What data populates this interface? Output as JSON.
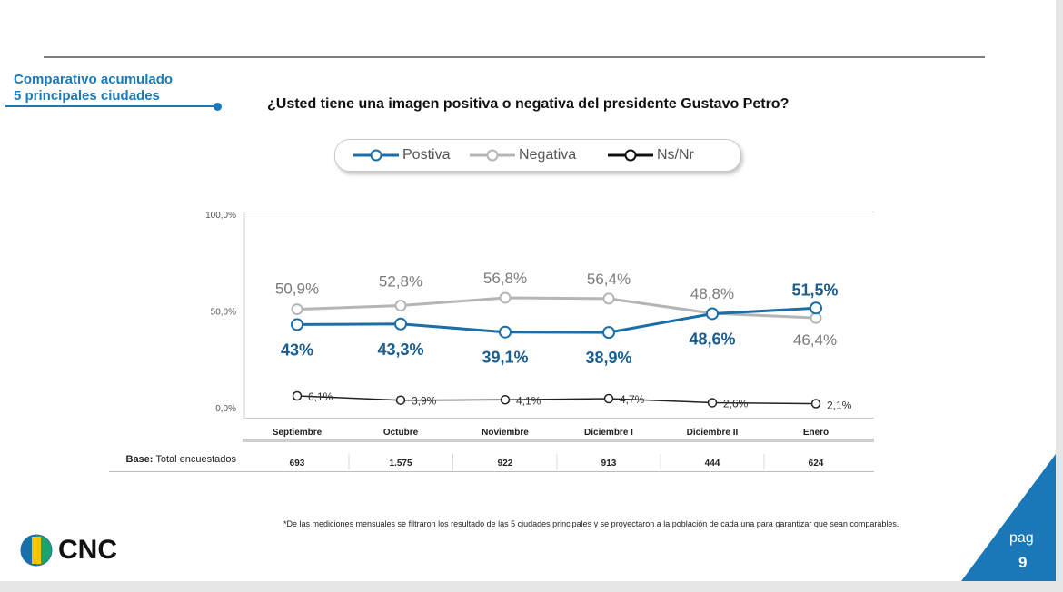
{
  "section": {
    "line1": "Comparativo acumulado",
    "line2": "5 principales ciudades"
  },
  "question": "¿Usted tiene una imagen positiva o negativa del presidente Gustavo Petro?",
  "legend": [
    {
      "label": "Postiva",
      "color": "#1a6fa8"
    },
    {
      "label": "Negativa",
      "color": "#b5b5b5"
    },
    {
      "label": "Ns/Nr",
      "color": "#111111"
    }
  ],
  "chart_data": {
    "type": "line",
    "categories": [
      "Septiembre",
      "Octubre",
      "Noviembre",
      "Diciembre I",
      "Diciembre II",
      "Enero"
    ],
    "yticks": [
      "100,0%",
      "50,0%",
      "0,0%"
    ],
    "ylim": [
      0,
      100
    ],
    "series": [
      {
        "name": "Negativa",
        "values": [
          50.9,
          52.8,
          56.8,
          56.4,
          48.8,
          46.4
        ],
        "labels": [
          "50,9%",
          "52,8%",
          "56,8%",
          "56,4%",
          "48,8%",
          "46,4%"
        ],
        "color": "#b5b5b5"
      },
      {
        "name": "Postiva",
        "values": [
          43.0,
          43.3,
          39.1,
          38.9,
          48.6,
          51.5
        ],
        "labels": [
          "43%",
          "43,3%",
          "39,1%",
          "38,9%",
          "48,6%",
          "51,5%"
        ],
        "color": "#1a6fa8"
      },
      {
        "name": "Ns/Nr",
        "values": [
          6.1,
          3.9,
          4.1,
          4.7,
          2.6,
          2.1
        ],
        "labels": [
          "6,1%",
          "3,9%",
          "4,1%",
          "4,7%",
          "2,6%",
          "2,1%"
        ],
        "color": "#111111"
      }
    ]
  },
  "base": {
    "label_bold": "Base:",
    "label_rest": " Total encuestados",
    "values": [
      "693",
      "1.575",
      "922",
      "913",
      "444",
      "624"
    ]
  },
  "footnote": "*De las mediciones mensuales se filtraron los resultado de las 5 ciudades principales y se proyectaron a la población de cada una para garantizar que sean comparables.",
  "logo_text": "CNC",
  "page": {
    "label": "pag",
    "number": "9"
  }
}
